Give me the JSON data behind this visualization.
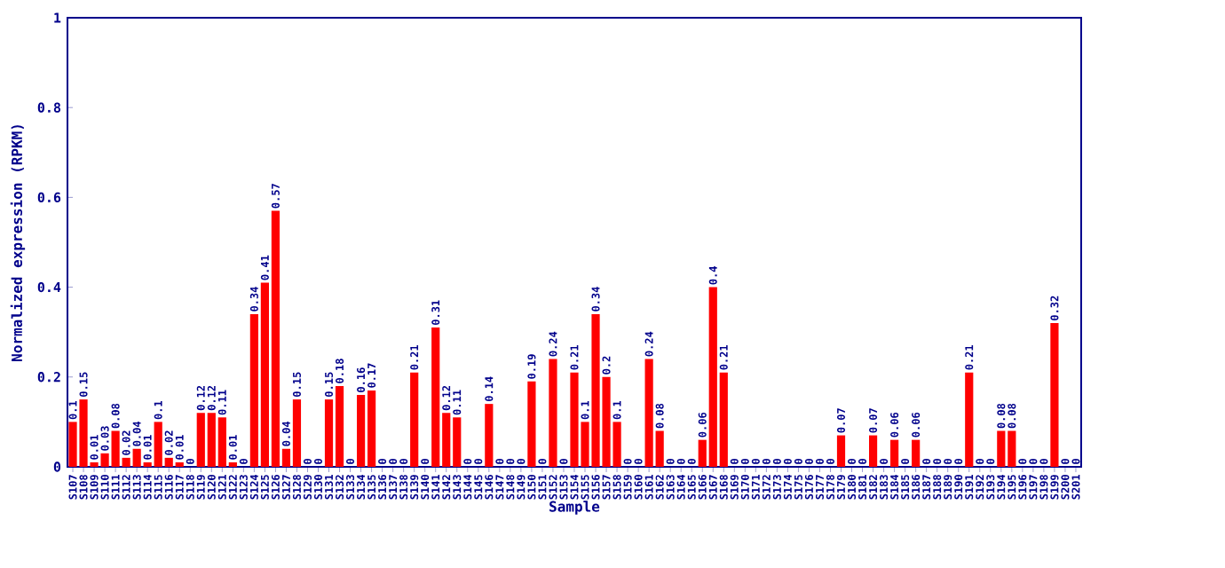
{
  "chart_data": {
    "type": "bar",
    "xlabel": "Sample",
    "ylabel": "Normalized expression (RPKM)",
    "categories": [
      "S107",
      "S108",
      "S109",
      "S110",
      "S111",
      "S112",
      "S113",
      "S114",
      "S115",
      "S116",
      "S117",
      "S118",
      "S119",
      "S120",
      "S121",
      "S122",
      "S123",
      "S124",
      "S125",
      "S126",
      "S127",
      "S128",
      "S129",
      "S130",
      "S131",
      "S132",
      "S133",
      "S134",
      "S135",
      "S136",
      "S137",
      "S138",
      "S139",
      "S140",
      "S141",
      "S142",
      "S143",
      "S144",
      "S145",
      "S146",
      "S147",
      "S148",
      "S149",
      "S150",
      "S151",
      "S152",
      "S153",
      "S154",
      "S155",
      "S156",
      "S157",
      "S158",
      "S159",
      "S160",
      "S161",
      "S162",
      "S163",
      "S164",
      "S165",
      "S166",
      "S167",
      "S168",
      "S169",
      "S170",
      "S171",
      "S172",
      "S173",
      "S174",
      "S175",
      "S176",
      "S177",
      "S178",
      "S179",
      "S180",
      "S181",
      "S182",
      "S183",
      "S184",
      "S185",
      "S186",
      "S187",
      "S188",
      "S189",
      "S190",
      "S191",
      "S192",
      "S193",
      "S194",
      "S195",
      "S196",
      "S197",
      "S198",
      "S199",
      "S200",
      "S201"
    ],
    "values": [
      0.1,
      0.15,
      0.01,
      0.03,
      0.08,
      0.02,
      0.04,
      0.01,
      0.1,
      0.02,
      0.01,
      0,
      0.12,
      0.12,
      0.11,
      0.01,
      0,
      0.34,
      0.41,
      0.57,
      0.04,
      0.15,
      0,
      0,
      0.15,
      0.18,
      0,
      0.16,
      0.17,
      0,
      0,
      0,
      0.21,
      0,
      0.31,
      0.12,
      0.11,
      0,
      0,
      0.14,
      0,
      0,
      0,
      0.19,
      0,
      0.24,
      0,
      0.21,
      0.1,
      0.34,
      0.2,
      0.1,
      0,
      0,
      0.24,
      0.08,
      0,
      0,
      0,
      0.06,
      0.4,
      0.21,
      0,
      0,
      0,
      0,
      0,
      0,
      0,
      0,
      0,
      0,
      0.07,
      0,
      0,
      0.07,
      0,
      0.06,
      0,
      0.06,
      0,
      0,
      0,
      0,
      0.21,
      0,
      0,
      0.08,
      0.08,
      0,
      0,
      0,
      0.32,
      0,
      0
    ],
    "color": "#ff0000",
    "data_labels": true,
    "grid": false,
    "ylim": [
      0,
      1
    ],
    "yticks": [
      0,
      0.2,
      0.4,
      0.6,
      0.8,
      1
    ]
  }
}
